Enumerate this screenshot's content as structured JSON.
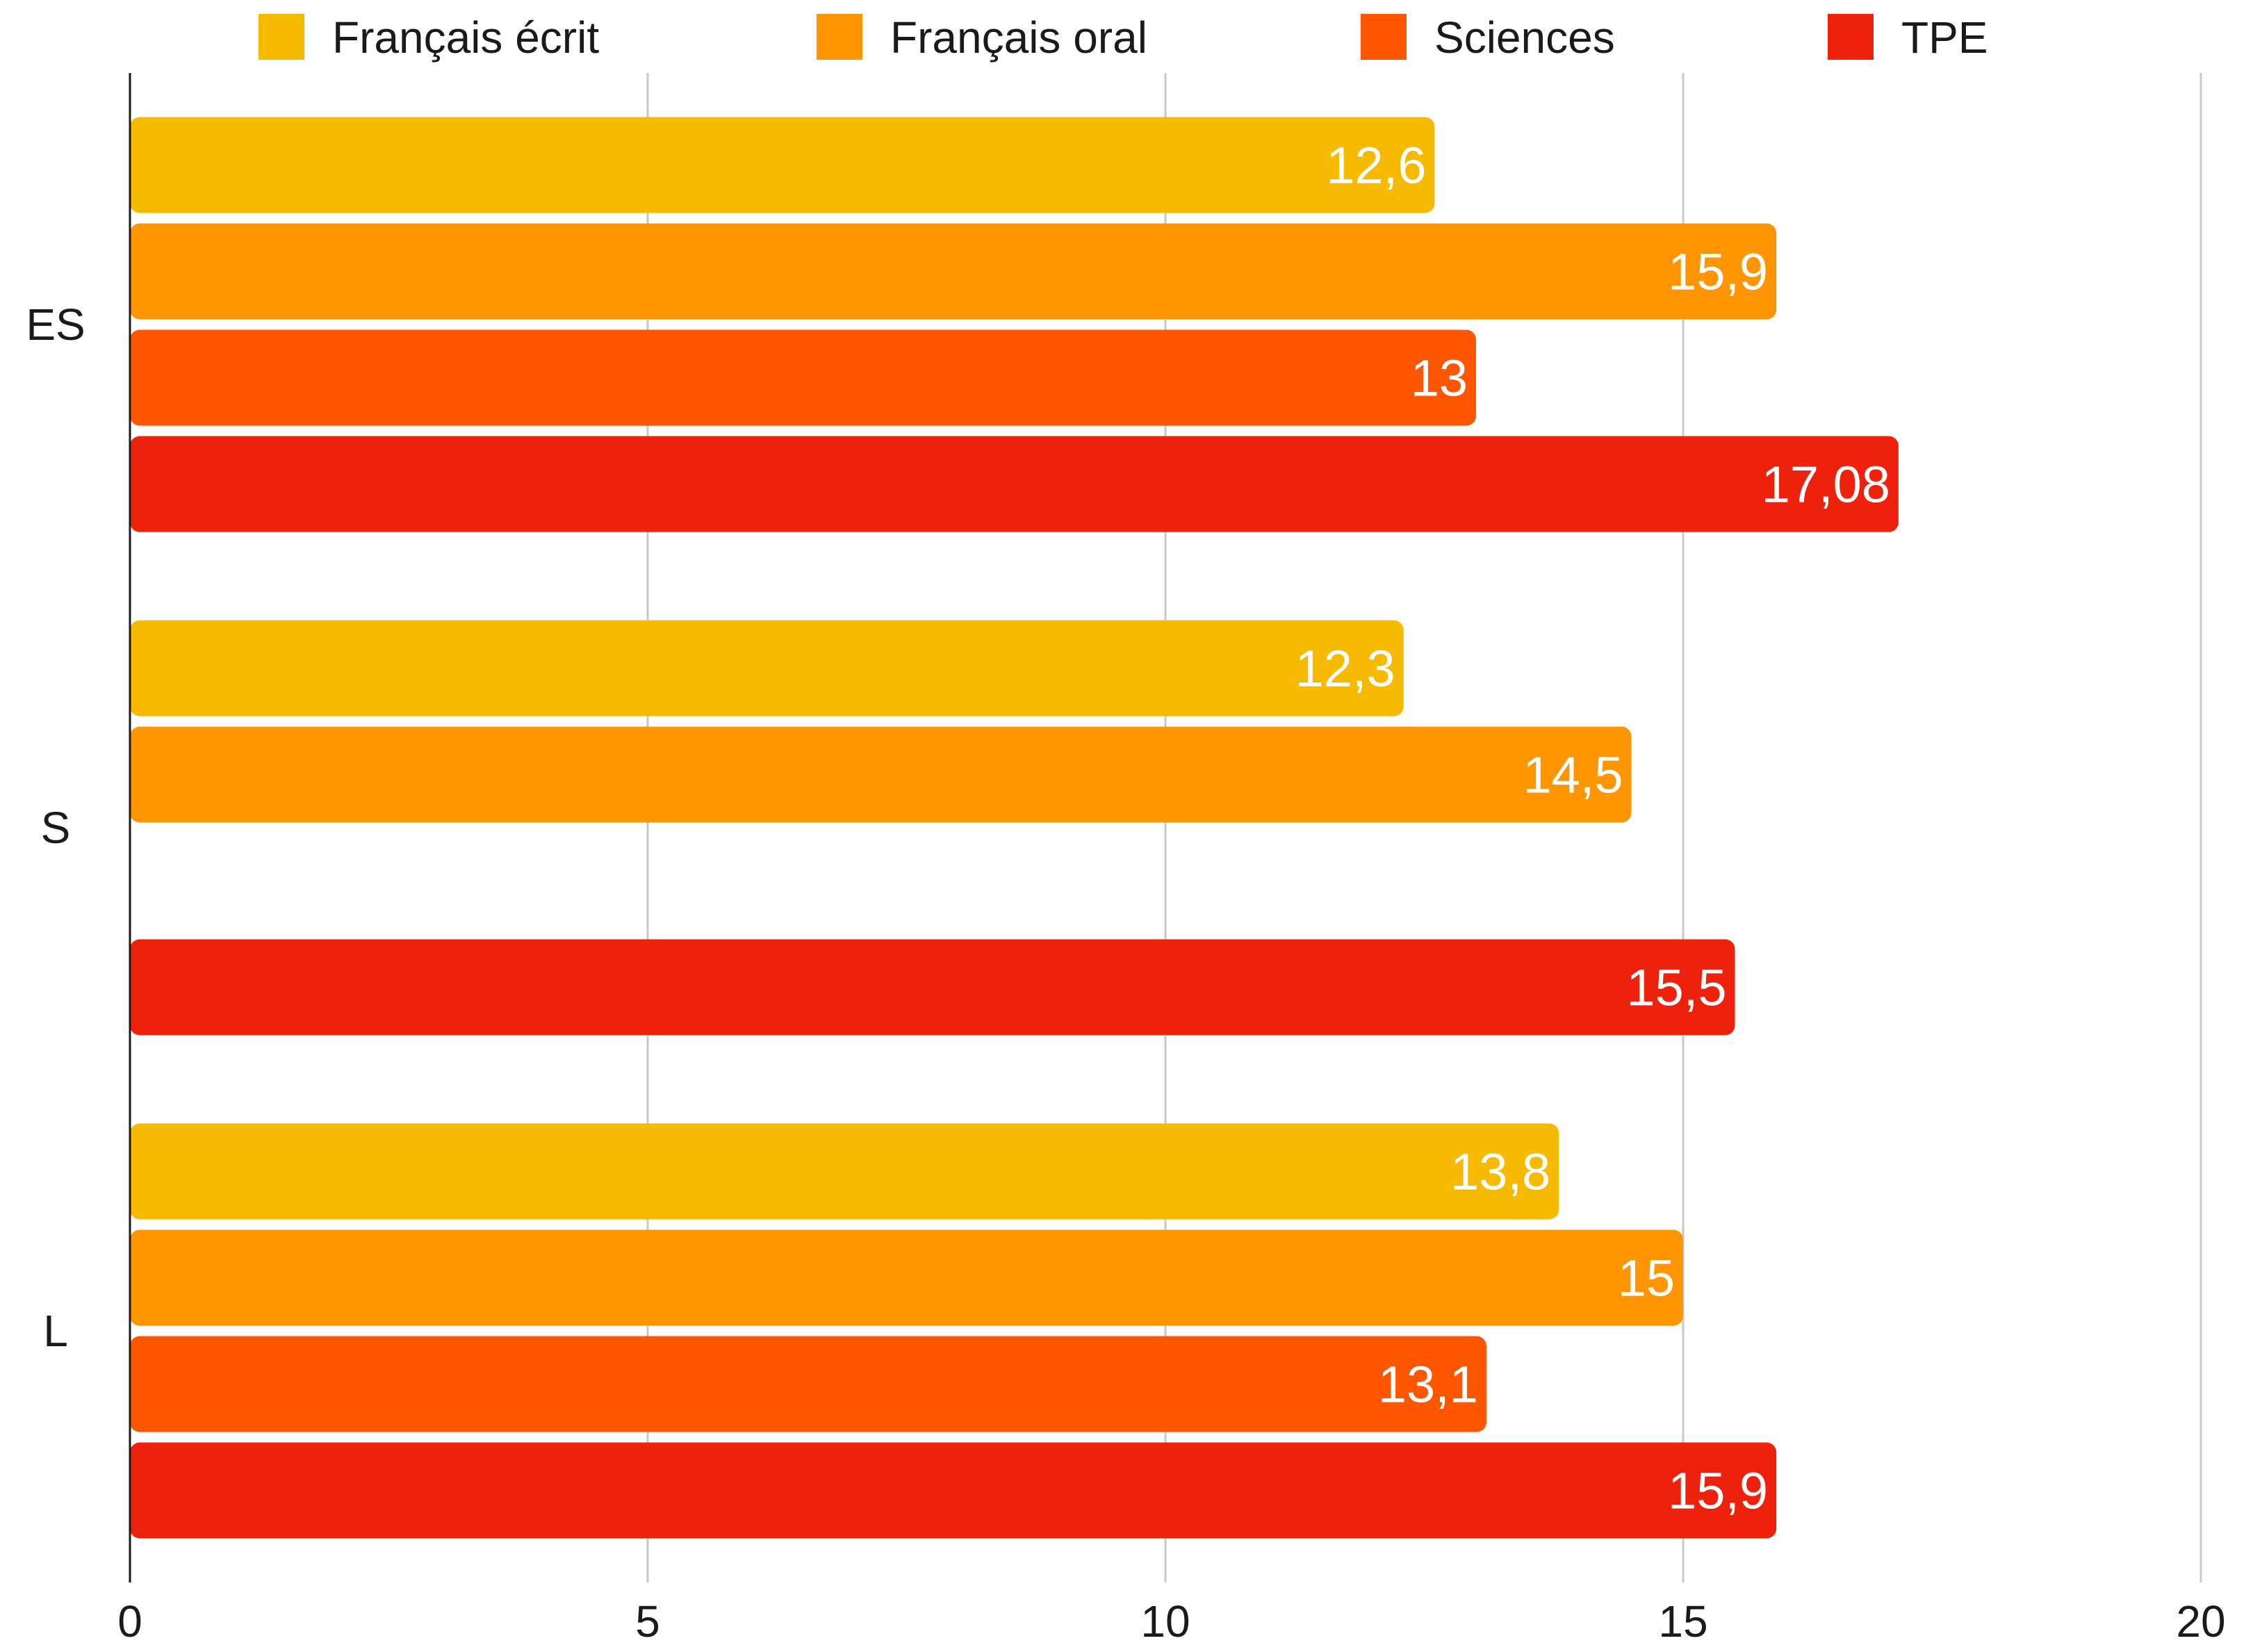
{
  "chart_data": {
    "type": "bar",
    "orientation": "horizontal",
    "categories": [
      "ES",
      "S",
      "L"
    ],
    "series": [
      {
        "name": "Français écrit",
        "color": "#F6BA00",
        "values": [
          12.6,
          12.3,
          13.8
        ],
        "labels": [
          "12,6",
          "12,3",
          "13,8"
        ]
      },
      {
        "name": "Français oral",
        "color": "#FF9500",
        "values": [
          15.9,
          14.5,
          15
        ],
        "labels": [
          "15,9",
          "14,5",
          "15"
        ]
      },
      {
        "name": "Sciences",
        "color": "#FF5600",
        "values": [
          13,
          null,
          13.1
        ],
        "labels": [
          "13",
          "",
          "13,1"
        ]
      },
      {
        "name": "TPE",
        "color": "#EE220C",
        "values": [
          17.08,
          15.5,
          15.9
        ],
        "labels": [
          "17,08",
          "15,5",
          "15,9"
        ]
      }
    ],
    "xlim": [
      0,
      20
    ],
    "xticks": [
      0,
      5,
      10,
      15,
      20
    ],
    "xtick_labels": [
      "0",
      "5",
      "10",
      "15",
      "20"
    ],
    "grid": "vertical",
    "legend": "top"
  }
}
